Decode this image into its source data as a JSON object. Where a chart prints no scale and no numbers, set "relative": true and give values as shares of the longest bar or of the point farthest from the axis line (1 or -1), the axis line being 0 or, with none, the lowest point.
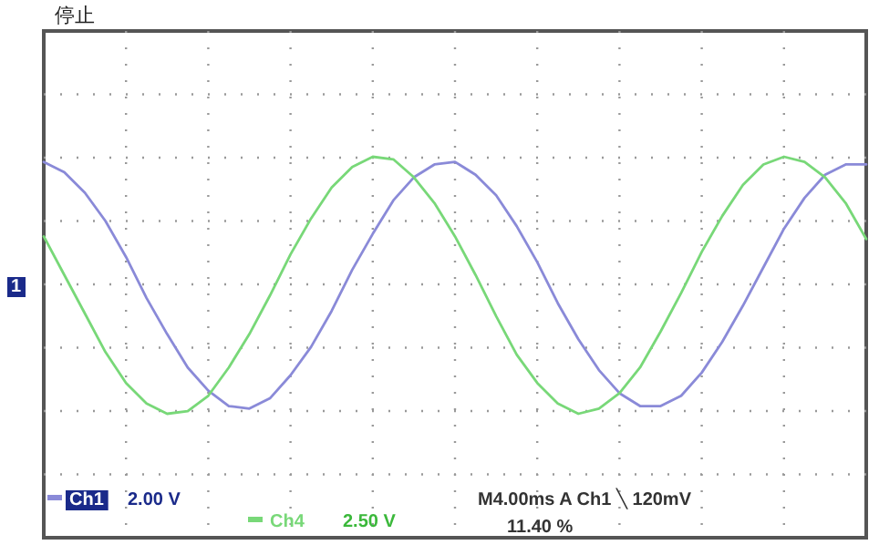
{
  "chart_data": {
    "type": "line",
    "title": "停止",
    "relative": true,
    "grid": true,
    "legend": "bottom left",
    "marker": "none",
    "line_style": "solid",
    "categories": [
      null,
      null,
      null,
      null,
      null,
      null,
      null,
      null,
      null,
      null,
      null,
      null,
      null,
      null,
      null,
      null,
      null,
      null,
      null,
      null,
      null,
      null,
      null,
      null,
      null,
      null,
      null,
      null,
      null,
      null,
      null,
      null,
      null,
      null,
      null,
      null,
      null,
      null,
      null,
      null,
      null
    ],
    "series": [
      {
        "name": "Ch1",
        "color": "#8a8ad8",
        "values": [
          0.98,
          0.94,
          0.86,
          0.75,
          0.61,
          0.45,
          0.31,
          0.18,
          0.09,
          0.03,
          0.02,
          0.06,
          0.15,
          0.26,
          0.4,
          0.56,
          0.7,
          0.83,
          0.92,
          0.97,
          0.98,
          0.93,
          0.85,
          0.73,
          0.59,
          0.43,
          0.29,
          0.17,
          0.08,
          0.03,
          0.03,
          0.07,
          0.16,
          0.28,
          0.42,
          0.57,
          0.72,
          0.84,
          0.93,
          0.97,
          0.97
        ]
      },
      {
        "name": "Ch4",
        "color": "#78d878",
        "values": [
          0.69,
          0.54,
          0.39,
          0.24,
          0.12,
          0.04,
          0.0,
          0.01,
          0.07,
          0.18,
          0.31,
          0.46,
          0.62,
          0.76,
          0.88,
          0.96,
          1.0,
          0.99,
          0.92,
          0.82,
          0.69,
          0.54,
          0.38,
          0.23,
          0.12,
          0.04,
          0.0,
          0.02,
          0.08,
          0.18,
          0.32,
          0.47,
          0.63,
          0.77,
          0.89,
          0.97,
          1.0,
          0.98,
          0.92,
          0.82,
          0.68
        ]
      }
    ],
    "annotations": [
      "1",
      "2.00 V",
      "2.50 V",
      "M4.00ms A Ch1 ╲ 120mV",
      "11.40 %"
    ]
  }
}
